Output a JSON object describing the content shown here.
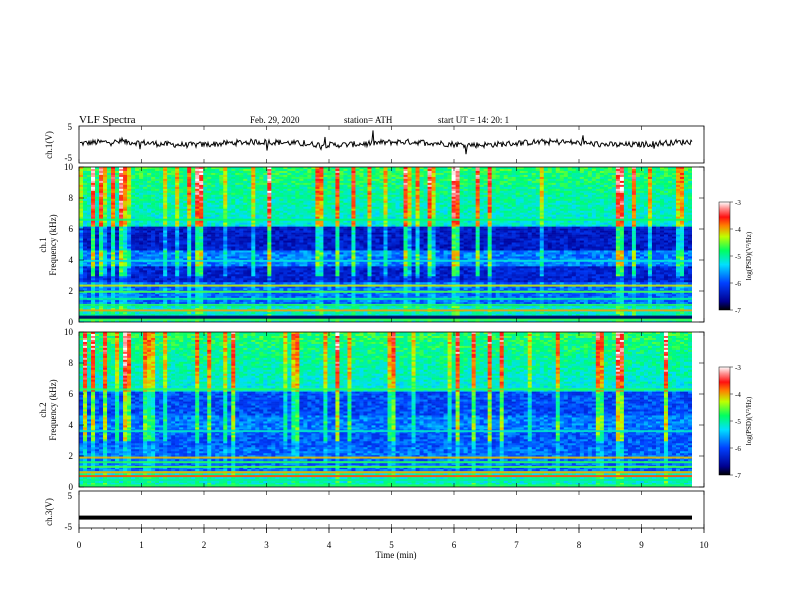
{
  "header": {
    "title": "VLF  Spectra",
    "date": "Feb. 29, 2020",
    "station": "station= ATH",
    "start": "start  UT  =    14: 20: 1"
  },
  "chart_data": [
    {
      "type": "line",
      "panel": "ch1-voltage",
      "ylabel": "ch.1(V)",
      "yticks": [
        "5",
        "-5"
      ],
      "ylim": [
        -5,
        5
      ],
      "xlim": [
        0,
        10
      ],
      "series": [
        {
          "values_description_only": false,
          "trace_level": 0.3
        }
      ]
    },
    {
      "type": "heatmap",
      "panel": "ch1-spectrogram",
      "ylabel_line1": "ch.1",
      "ylabel_line2": "Frequency  (kHz)",
      "yticks": [
        "10",
        "8",
        "6",
        "4",
        "2",
        "0"
      ],
      "ylim": [
        0,
        10
      ],
      "xlim": [
        0,
        9.8
      ],
      "colorbar": {
        "label": "log(PSD)(V²/Hz)",
        "ticks": [
          "-3",
          "-4",
          "-5",
          "-6",
          "-7"
        ],
        "range": [
          -7,
          -3
        ]
      }
    },
    {
      "type": "heatmap",
      "panel": "ch2-spectrogram",
      "ylabel_line1": "ch.2",
      "ylabel_line2": "Frequency  (kHz)",
      "yticks": [
        "10",
        "8",
        "6",
        "4",
        "2",
        "0"
      ],
      "ylim": [
        0,
        10
      ],
      "xlim": [
        0,
        9.8
      ],
      "colorbar": {
        "label": "log(PSD)(V²/Hz)",
        "ticks": [
          "-3",
          "-4",
          "-5",
          "-6",
          "-7"
        ],
        "range": [
          -7,
          -3
        ]
      }
    },
    {
      "type": "line",
      "panel": "ch3-voltage",
      "ylabel": "ch.3(V)",
      "yticks": [
        "5",
        "-5"
      ],
      "ylim": [
        -5,
        5
      ],
      "xlim": [
        0,
        10
      ],
      "series": [
        {
          "trace_level": -2.2
        }
      ]
    }
  ],
  "xaxis": {
    "label": "Time  (min)",
    "ticks": [
      "0",
      "1",
      "2",
      "3",
      "4",
      "5",
      "6",
      "7",
      "8",
      "9",
      "10"
    ],
    "range": [
      0,
      10
    ]
  },
  "colors": {
    "low": "#000080",
    "mid_low": "#0050ff",
    "mid": "#00ffd0",
    "mid_high": "#30ff30",
    "high": "#ffff00",
    "very_high": "#ff2020",
    "top": "#ffffff"
  }
}
